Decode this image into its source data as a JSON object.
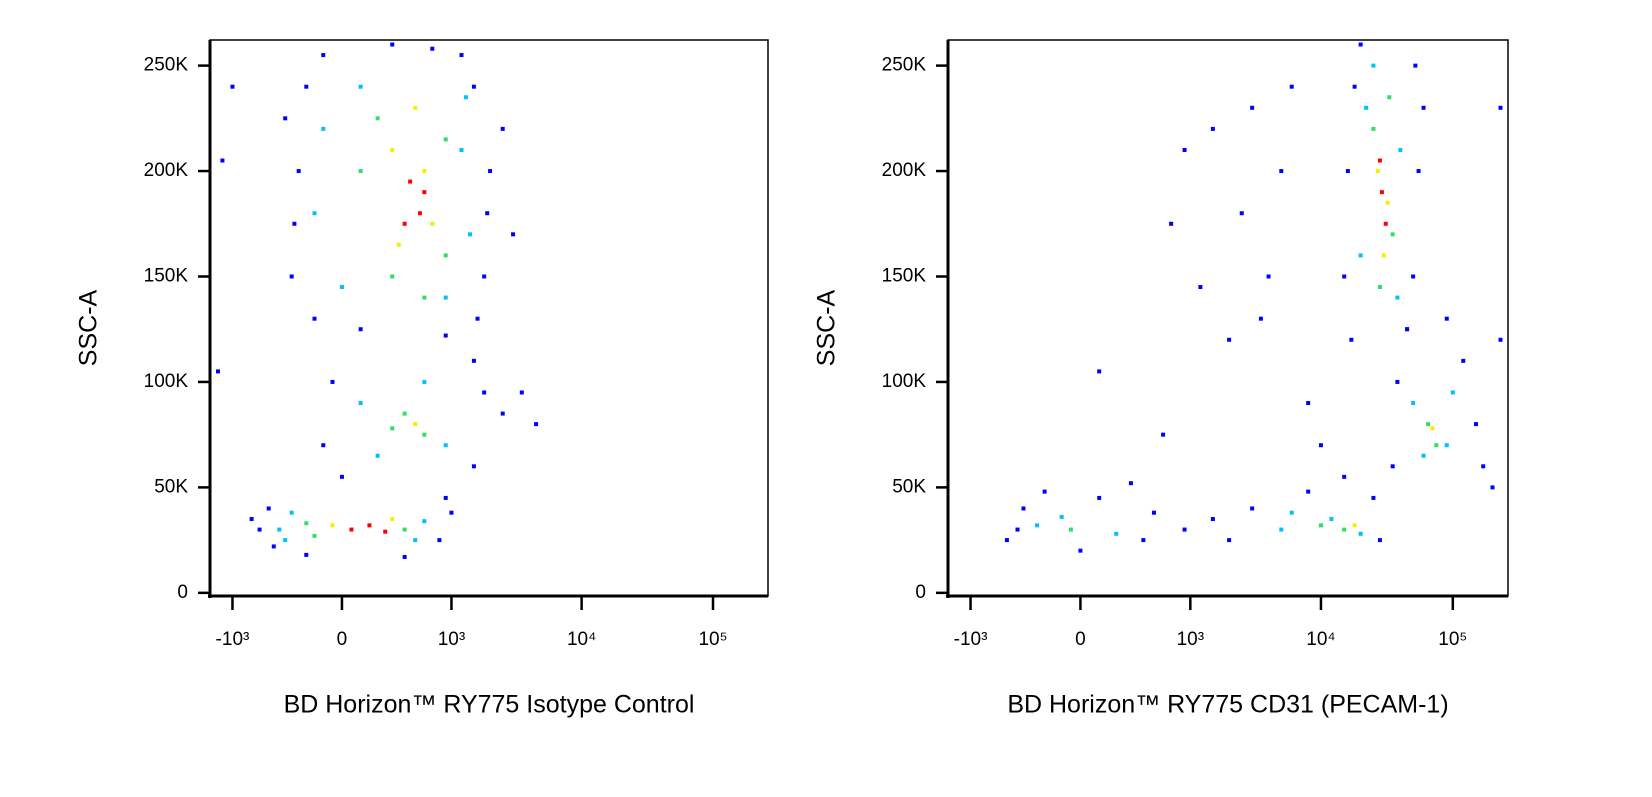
{
  "chart_data": [
    {
      "type": "scatter",
      "x_label": "BD Horizon™ RY775 Isotype Control",
      "y_label": "SSC-A",
      "xscale": "asinh",
      "x_cofactor": 300,
      "xlim": [
        -1500,
        262144
      ],
      "ylim": [
        -1500,
        262144
      ],
      "xticks": [
        {
          "value": -1000,
          "label": "-10³"
        },
        0,
        {
          "value": 1000,
          "label": "10³"
        },
        {
          "value": 10000,
          "label": "10⁴"
        },
        {
          "value": 100000,
          "label": "10⁵"
        }
      ],
      "yticks": [
        0,
        {
          "value": 50000,
          "label": "50K"
        },
        {
          "value": 100000,
          "label": "100K"
        },
        {
          "value": 150000,
          "label": "150K"
        },
        {
          "value": 200000,
          "label": "200K"
        },
        {
          "value": 250000,
          "label": "250K"
        }
      ],
      "series": [
        {
          "color": "#0000ff",
          "x": [
            -300,
            -250,
            -200,
            -150,
            -100,
            1800,
            2000,
            1500,
            1600,
            1200,
            -280,
            1900,
            100,
            900,
            2500,
            -350,
            300,
            700,
            3000,
            1500,
            -100,
            -50,
            1800,
            1500,
            2500,
            0,
            4500,
            3500,
            -600,
            -500,
            -450,
            800,
            1000,
            -200,
            400,
            900,
            -700,
            -1200,
            -1300,
            -1000
          ],
          "values": [
            150000,
            200000,
            240000,
            130000,
            255000,
            150000,
            200000,
            240000,
            130000,
            255000,
            175000,
            180000,
            125000,
            122000,
            220000,
            225000,
            260000,
            258000,
            170000,
            110000,
            70000,
            100000,
            95000,
            60000,
            85000,
            55000,
            80000,
            95000,
            30000,
            40000,
            22000,
            25000,
            38000,
            18000,
            17000,
            45000,
            35000,
            205000,
            105000,
            240000
          ]
        },
        {
          "color": "#00c0ff",
          "x": [
            -150,
            -100,
            1400,
            1200,
            0,
            900,
            1300,
            100,
            100,
            900,
            600,
            200,
            -400,
            600,
            -300,
            500,
            -350
          ],
          "values": [
            180000,
            220000,
            170000,
            210000,
            145000,
            140000,
            235000,
            240000,
            90000,
            70000,
            100000,
            65000,
            30000,
            34000,
            38000,
            25000,
            25000
          ]
        },
        {
          "color": "#30e060",
          "x": [
            100,
            300,
            900,
            900,
            200,
            600,
            400,
            600,
            300,
            -200,
            400,
            -150
          ],
          "values": [
            200000,
            150000,
            215000,
            160000,
            225000,
            140000,
            85000,
            75000,
            78000,
            33000,
            30000,
            27000
          ]
        },
        {
          "color": "#f0f000",
          "x": [
            300,
            600,
            350,
            700,
            500,
            -50,
            300,
            500
          ],
          "values": [
            210000,
            200000,
            165000,
            175000,
            230000,
            32000,
            35000,
            80000
          ]
        },
        {
          "color": "#ff0000",
          "x": [
            450,
            550,
            400,
            600,
            50,
            150,
            250
          ],
          "values": [
            195000,
            180000,
            175000,
            190000,
            30000,
            32000,
            29000
          ]
        }
      ]
    },
    {
      "type": "scatter",
      "x_label": "BD Horizon™ RY775 CD31 (PECAM-1)",
      "y_label": "SSC-A",
      "xscale": "asinh",
      "x_cofactor": 300,
      "xlim": [
        -1500,
        262144
      ],
      "ylim": [
        -1500,
        262144
      ],
      "xticks": [
        {
          "value": -1000,
          "label": "-10³"
        },
        0,
        {
          "value": 1000,
          "label": "10³"
        },
        {
          "value": 10000,
          "label": "10⁴"
        },
        {
          "value": 100000,
          "label": "10⁵"
        }
      ],
      "yticks": [
        0,
        {
          "value": 50000,
          "label": "50K"
        },
        {
          "value": 100000,
          "label": "100K"
        },
        {
          "value": 150000,
          "label": "150K"
        },
        {
          "value": 200000,
          "label": "200K"
        },
        {
          "value": 250000,
          "label": "250K"
        }
      ],
      "series": [
        {
          "color": "#0000ff",
          "x": [
            15000,
            16000,
            18000,
            55000,
            50000,
            52000,
            17000,
            45000,
            20000,
            60000,
            35000,
            38000,
            150000,
            120000,
            170000,
            45000,
            90000,
            -400,
            -350,
            -500,
            400,
            500,
            0,
            100,
            -200,
            300,
            900,
            1500,
            2000,
            3000,
            28000,
            25000,
            8000,
            15000,
            700,
            1500,
            3000,
            5000,
            2500,
            4000,
            1200,
            6000,
            2000,
            900,
            3500,
            600,
            100,
            8000,
            10000,
            230000,
            230000,
            200000
          ],
          "values": [
            150000,
            200000,
            240000,
            200000,
            150000,
            250000,
            120000,
            125000,
            260000,
            230000,
            60000,
            100000,
            80000,
            110000,
            60000,
            125000,
            130000,
            30000,
            40000,
            25000,
            25000,
            38000,
            20000,
            45000,
            48000,
            52000,
            30000,
            35000,
            25000,
            40000,
            25000,
            45000,
            48000,
            55000,
            175000,
            220000,
            230000,
            200000,
            180000,
            150000,
            145000,
            240000,
            120000,
            210000,
            130000,
            75000,
            105000,
            90000,
            70000,
            230000,
            120000,
            50000
          ]
        },
        {
          "color": "#00c0ff",
          "x": [
            20000,
            40000,
            22000,
            38000,
            25000,
            50000,
            90000,
            60000,
            100000,
            -250,
            200,
            -100,
            5000,
            12000,
            20000,
            6000
          ],
          "values": [
            160000,
            210000,
            230000,
            140000,
            250000,
            90000,
            70000,
            65000,
            95000,
            32000,
            28000,
            36000,
            30000,
            35000,
            28000,
            38000
          ]
        },
        {
          "color": "#30e060",
          "x": [
            25000,
            35000,
            28000,
            33000,
            65000,
            75000,
            -50,
            10000,
            15000
          ],
          "values": [
            220000,
            170000,
            145000,
            235000,
            80000,
            70000,
            30000,
            32000,
            30000
          ]
        },
        {
          "color": "#f0f000",
          "x": [
            27000,
            32000,
            30000,
            70000,
            18000
          ],
          "values": [
            200000,
            185000,
            160000,
            78000,
            32000
          ]
        },
        {
          "color": "#ff0000",
          "x": [
            29000,
            31000,
            28000
          ],
          "values": [
            190000,
            175000,
            205000
          ]
        }
      ]
    }
  ]
}
